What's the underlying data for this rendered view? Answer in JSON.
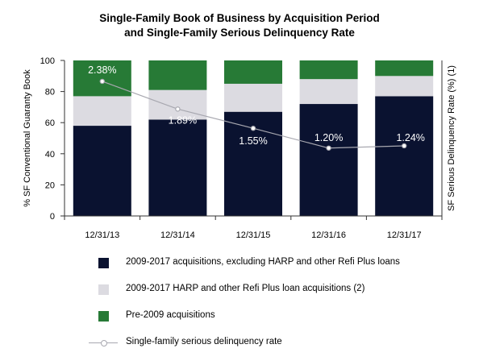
{
  "title_line1": "Single-Family Book of Business by Acquisition Period",
  "title_line2": "and Single-Family Serious Delinquency Rate",
  "colors": {
    "post2009": "#0a1230",
    "harp": "#dcdbe1",
    "pre2009": "#277a36",
    "line": "#a8a8b0",
    "axis": "#333333"
  },
  "chart_data": {
    "type": "bar",
    "stacked": true,
    "title": "Single-Family Book of Business by Acquisition Period and Single-Family Serious Delinquency Rate",
    "categories": [
      "12/31/13",
      "12/31/14",
      "12/31/15",
      "12/31/16",
      "12/31/17"
    ],
    "ylabel": "% SF Conventional Guaranty Book",
    "y2label": "SF Serious Delinquency Rate (%) (1)",
    "ylim": [
      0,
      100
    ],
    "yticks": [
      0,
      20,
      40,
      60,
      80,
      100
    ],
    "series": [
      {
        "name": "2009-2017 acquisitions, excluding HARP and other Refi Plus loans",
        "values": [
          58,
          62,
          67,
          72,
          77
        ]
      },
      {
        "name": "2009-2017 HARP and other Refi Plus loan acquisitions (2)",
        "values": [
          19,
          19,
          18,
          16,
          13
        ]
      },
      {
        "name": "Pre-2009 acquisitions",
        "values": [
          23,
          19,
          15,
          12,
          10
        ]
      }
    ],
    "line_series": {
      "name": "Single-family serious delinquency rate",
      "values": [
        2.38,
        1.89,
        1.55,
        1.2,
        1.24
      ],
      "labels": [
        "2.38%",
        "1.89%",
        "1.55%",
        "1.20%",
        "1.24%"
      ]
    },
    "grid": false,
    "legend_position": "bottom"
  }
}
